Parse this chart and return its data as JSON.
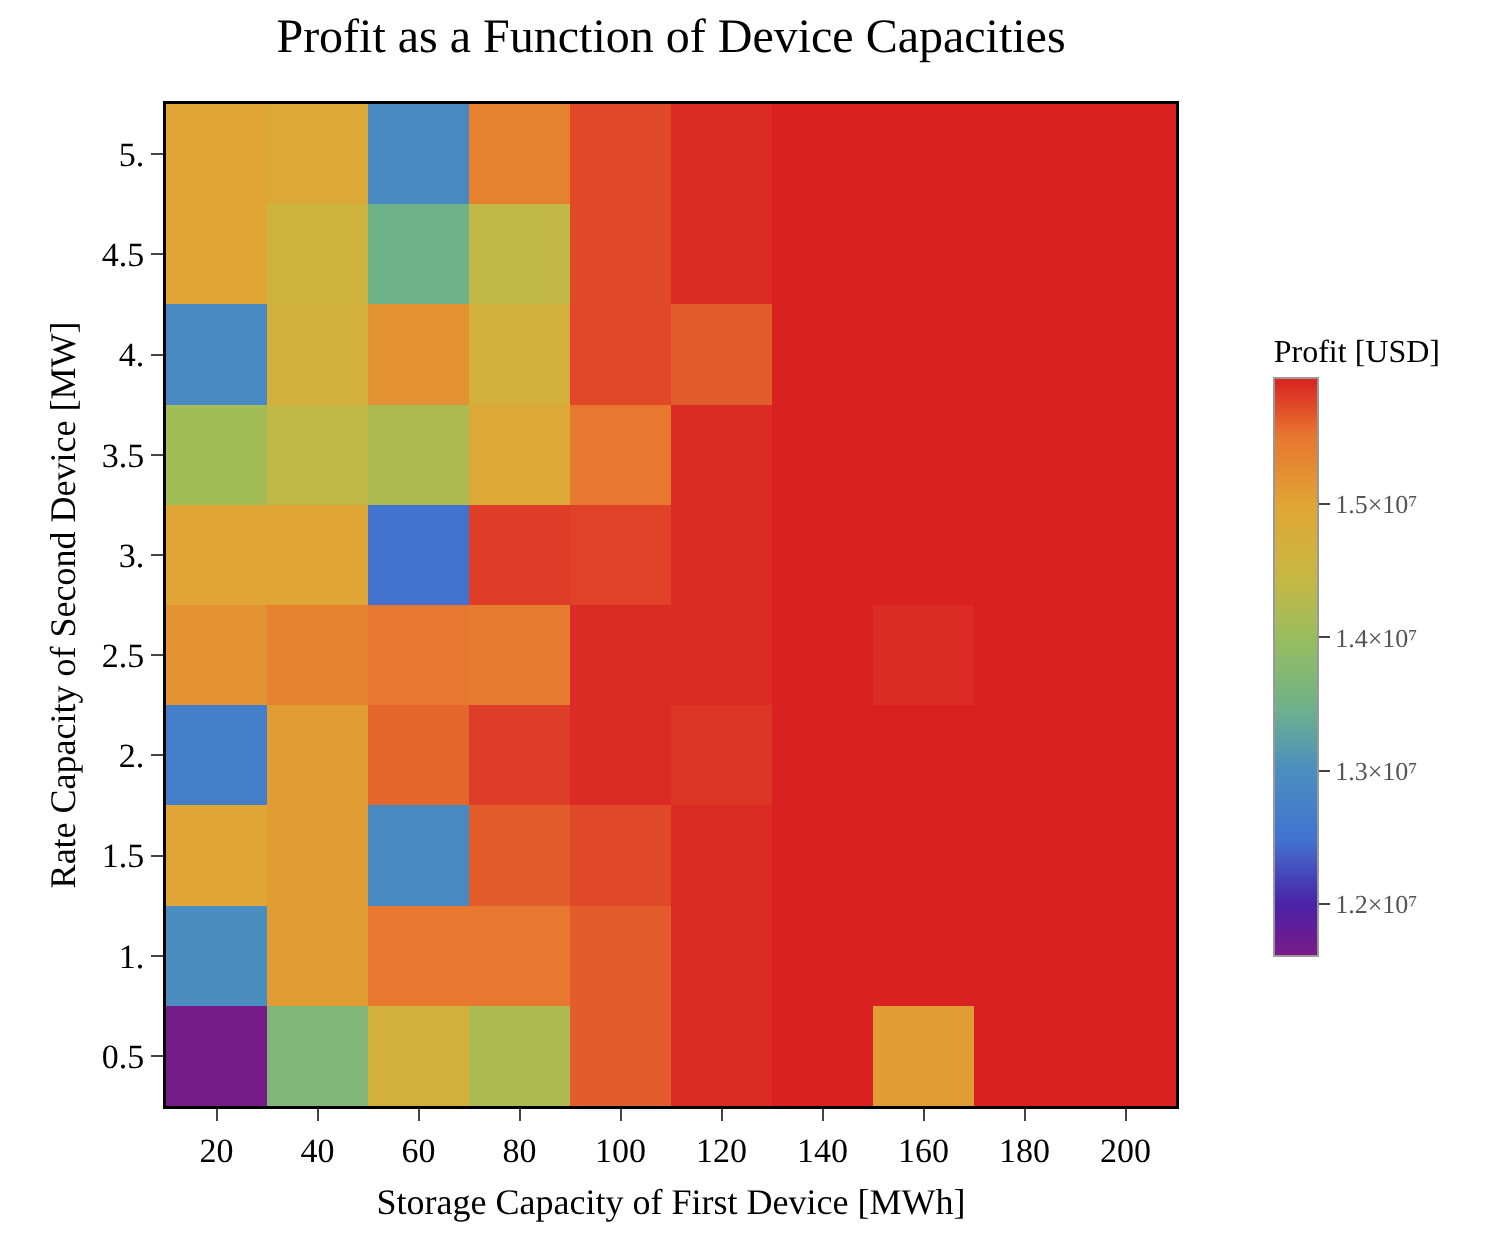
{
  "chart_data": {
    "type": "heatmap",
    "title": "Profit as a Function of Device Capacities",
    "xlabel": "Storage Capacity of First Device [MWh]",
    "ylabel": "Rate Capacity of Second Device [MW]",
    "clabel": "Profit [USD]",
    "categories": [
      "20",
      "40",
      "60",
      "80",
      "100",
      "120",
      "140",
      "160",
      "180",
      "200"
    ],
    "y_categories": [
      "5.",
      "4.5",
      "4.",
      "3.5",
      "3.",
      "2.5",
      "2.",
      "1.5",
      "1.",
      "0.5"
    ],
    "cells": [
      [
        15000000,
        14900000,
        12900000,
        15400000,
        15750000,
        15900000,
        15950000,
        15950000,
        15950000,
        15950000
      ],
      [
        15000000,
        14600000,
        13500000,
        14400000,
        15750000,
        15900000,
        15950000,
        15950000,
        15950000,
        15950000
      ],
      [
        12900000,
        14700000,
        15200000,
        14700000,
        15750000,
        15650000,
        15950000,
        15950000,
        15950000,
        15950000
      ],
      [
        14100000,
        14400000,
        14200000,
        14900000,
        15500000,
        15900000,
        15950000,
        15950000,
        15950000,
        15950000
      ],
      [
        15000000,
        15000000,
        12500000,
        15800000,
        15780000,
        15900000,
        15950000,
        15950000,
        15950000,
        15950000
      ],
      [
        15200000,
        15400000,
        15500000,
        15450000,
        15900000,
        15900000,
        15950000,
        15900000,
        15950000,
        15950000
      ],
      [
        12700000,
        15100000,
        15600000,
        15800000,
        15900000,
        15850000,
        15950000,
        15950000,
        15950000,
        15950000
      ],
      [
        15000000,
        15100000,
        12900000,
        15650000,
        15750000,
        15900000,
        15950000,
        15950000,
        15950000,
        15950000
      ],
      [
        13000000,
        15100000,
        15500000,
        15500000,
        15650000,
        15900000,
        15950000,
        15950000,
        15950000,
        15950000
      ],
      [
        11650000,
        13700000,
        14700000,
        14200000,
        15650000,
        15900000,
        15950000,
        15100000,
        15950000,
        15950000
      ]
    ],
    "clim": [
      11620000,
      15950000
    ],
    "cticks": [
      {
        "value": 12000000,
        "label": "1.2×10⁷"
      },
      {
        "value": 13000000,
        "label": "1.3×10⁷"
      },
      {
        "value": 14000000,
        "label": "1.4×10⁷"
      },
      {
        "value": 15000000,
        "label": "1.5×10⁷"
      }
    ]
  }
}
